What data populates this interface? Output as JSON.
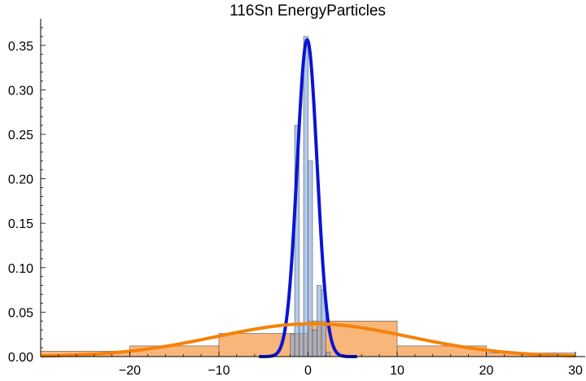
{
  "chart_data": {
    "type": "bar",
    "title": "116Sn EnergyParticles",
    "xlabel": "",
    "ylabel": "",
    "xlim": [
      -30,
      30
    ],
    "ylim": [
      0,
      0.38
    ],
    "x_ticks": [
      -20,
      -10,
      0,
      10,
      20,
      30
    ],
    "x_tick_labels": [
      "−20",
      "−10",
      "0",
      "10",
      "20",
      "30"
    ],
    "y_ticks": [
      0.0,
      0.05,
      0.1,
      0.15,
      0.2,
      0.25,
      0.3,
      0.35
    ],
    "y_tick_labels": [
      "0.00",
      "0.05",
      "0.10",
      "0.15",
      "0.20",
      "0.25",
      "0.30",
      "0.35"
    ],
    "grid": false,
    "legend": "none",
    "series": [
      {
        "kind": "histogram",
        "color": "#7fa6e0",
        "bins": [
          {
            "x0": -2.0,
            "x1": -1.5,
            "height": 0.025
          },
          {
            "x0": -1.5,
            "x1": -1.0,
            "height": 0.26
          },
          {
            "x0": -1.0,
            "x1": -0.5,
            "height": 0.035
          },
          {
            "x0": -0.5,
            "x1": 0.0,
            "height": 0.36
          },
          {
            "x0": 0.0,
            "x1": 0.5,
            "height": 0.22
          },
          {
            "x0": 0.5,
            "x1": 1.0,
            "height": 0.03
          },
          {
            "x0": 1.0,
            "x1": 1.5,
            "height": 0.08
          },
          {
            "x0": 1.5,
            "x1": 2.0,
            "height": 0.075
          },
          {
            "x0": 2.0,
            "x1": 2.5,
            "height": 0.005
          }
        ]
      },
      {
        "kind": "histogram",
        "color": "#f7a45a",
        "bins": [
          {
            "x0": -30,
            "x1": -20,
            "height": 0.006
          },
          {
            "x0": -20,
            "x1": -10,
            "height": 0.012
          },
          {
            "x0": -10,
            "x1": 0,
            "height": 0.026
          },
          {
            "x0": 0,
            "x1": 10,
            "height": 0.04
          },
          {
            "x0": 10,
            "x1": 20,
            "height": 0.012
          },
          {
            "x0": 20,
            "x1": 30,
            "height": 0.004
          }
        ]
      },
      {
        "kind": "normal-curve",
        "color": "#0a14d2",
        "mean": -0.1,
        "sd": 1.12,
        "x_range": [
          -5.5,
          5.5
        ]
      },
      {
        "kind": "normal-curve",
        "color": "#f5820a",
        "mean": 0.5,
        "sd": 10.8,
        "x_range": [
          -30,
          30
        ]
      }
    ]
  }
}
